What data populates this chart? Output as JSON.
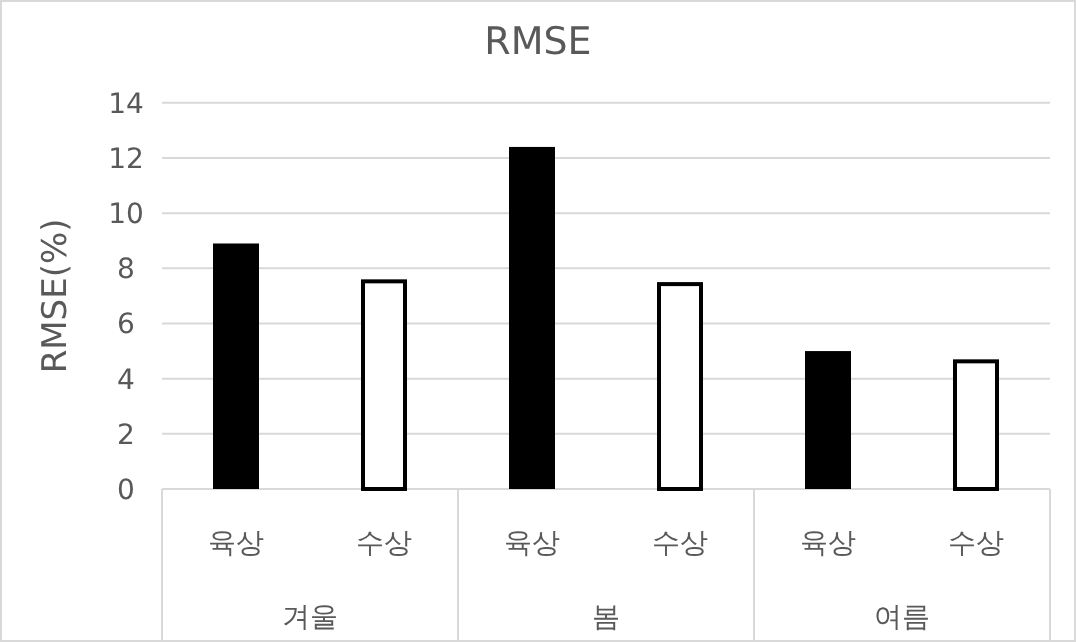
{
  "chart_data": {
    "type": "bar",
    "title": "RMSE",
    "ylabel": "RMSE(%)",
    "categories": [
      "겨울",
      "봄",
      "여름"
    ],
    "series": [
      {
        "name": "육상",
        "color": "#000000",
        "values": [
          8.9,
          12.4,
          5.0
        ]
      },
      {
        "name": "수상",
        "color": "#ffffff",
        "values": [
          7.6,
          7.5,
          4.7
        ]
      }
    ],
    "ylim": [
      0,
      14
    ],
    "yticks": [
      0,
      2,
      4,
      6,
      8,
      10,
      12,
      14
    ],
    "grid": "y",
    "legend": false
  }
}
